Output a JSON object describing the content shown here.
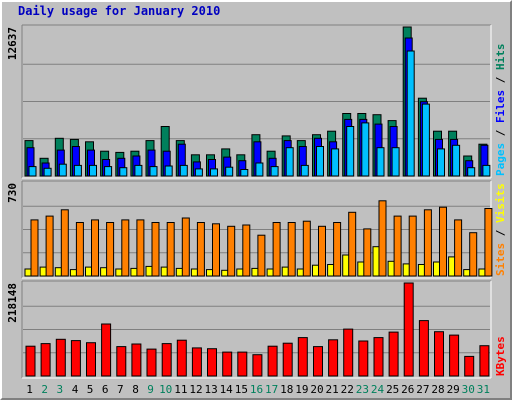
{
  "title": "Daily usage for January 2010",
  "colors": {
    "hits": "#00805C",
    "files": "#0000FF",
    "pages": "#00C0FF",
    "visits": "#FFFF00",
    "sites": "#FF8000",
    "kbytes": "#FF0000",
    "weekend": "#00805C",
    "weekday": "#000000",
    "panel_bg": "#C0C0C0",
    "grid": "#808080"
  },
  "chart_data": [
    {
      "type": "bar",
      "panel": "hits-files-pages",
      "scale_label": "12637",
      "ylim": [
        0,
        12637
      ],
      "legend": {
        "pages": "Pages",
        "files": "Files",
        "hits": "Hits",
        "sep": " / "
      },
      "categories": [
        "1",
        "2",
        "3",
        "4",
        "5",
        "6",
        "7",
        "8",
        "9",
        "10",
        "11",
        "12",
        "13",
        "14",
        "15",
        "16",
        "17",
        "18",
        "19",
        "20",
        "21",
        "22",
        "23",
        "24",
        "25",
        "26",
        "27",
        "28",
        "29",
        "30",
        "31"
      ],
      "series": [
        {
          "name": "Hits",
          "values": [
            3000,
            1500,
            3200,
            3100,
            2900,
            2100,
            2000,
            2100,
            3000,
            4200,
            3000,
            1800,
            1800,
            2300,
            1800,
            3500,
            2100,
            3400,
            3000,
            3500,
            3800,
            5300,
            5300,
            5200,
            4700,
            12637,
            6600,
            3800,
            3800,
            1700,
            2700
          ]
        },
        {
          "name": "Files",
          "values": [
            2400,
            1100,
            2200,
            2500,
            2200,
            1400,
            1500,
            1700,
            2200,
            2100,
            2700,
            1200,
            1400,
            1600,
            1300,
            2900,
            1500,
            3000,
            2500,
            3200,
            2900,
            4800,
            4800,
            4400,
            4200,
            11700,
            6300,
            3100,
            3100,
            1300,
            2600
          ]
        },
        {
          "name": "Pages",
          "values": [
            800,
            650,
            1000,
            900,
            900,
            800,
            700,
            900,
            800,
            850,
            900,
            600,
            600,
            750,
            550,
            1100,
            800,
            2400,
            900,
            2500,
            2300,
            4200,
            4500,
            2400,
            2400,
            10600,
            6100,
            2300,
            2600,
            700,
            900
          ]
        }
      ]
    },
    {
      "type": "bar",
      "panel": "visits-sites",
      "scale_label": "730",
      "ylim": [
        0,
        730
      ],
      "legend": {
        "sites": "Sites",
        "visits": "Visits",
        "sep": " / "
      },
      "categories": [
        "1",
        "2",
        "3",
        "4",
        "5",
        "6",
        "7",
        "8",
        "9",
        "10",
        "11",
        "12",
        "13",
        "14",
        "15",
        "16",
        "17",
        "18",
        "19",
        "20",
        "21",
        "22",
        "23",
        "24",
        "25",
        "26",
        "27",
        "28",
        "29",
        "30",
        "31"
      ],
      "series": [
        {
          "name": "Visits",
          "values": [
            55,
            70,
            65,
            50,
            70,
            65,
            55,
            60,
            75,
            70,
            60,
            55,
            50,
            45,
            55,
            60,
            55,
            70,
            55,
            85,
            90,
            165,
            110,
            230,
            115,
            95,
            90,
            110,
            150,
            50,
            55
          ]
        },
        {
          "name": "Sites",
          "values": [
            440,
            470,
            520,
            420,
            440,
            420,
            440,
            440,
            420,
            420,
            455,
            420,
            410,
            390,
            400,
            320,
            420,
            420,
            430,
            390,
            420,
            500,
            370,
            590,
            470,
            470,
            520,
            540,
            440,
            340,
            530
          ]
        }
      ]
    },
    {
      "type": "bar",
      "panel": "kbytes",
      "scale_label": "218148",
      "ylim": [
        0,
        218148
      ],
      "legend": {
        "kbytes": "KBytes"
      },
      "categories": [
        "1",
        "2",
        "3",
        "4",
        "5",
        "6",
        "7",
        "8",
        "9",
        "10",
        "11",
        "12",
        "13",
        "14",
        "15",
        "16",
        "17",
        "18",
        "19",
        "20",
        "21",
        "22",
        "23",
        "24",
        "25",
        "26",
        "27",
        "28",
        "29",
        "30",
        "31"
      ],
      "series": [
        {
          "name": "KBytes",
          "values": [
            70000,
            76000,
            86000,
            83000,
            78000,
            122000,
            69000,
            75000,
            63000,
            76000,
            84000,
            66000,
            64000,
            56000,
            56000,
            50000,
            70000,
            77000,
            90000,
            69000,
            85000,
            110000,
            82000,
            90000,
            103000,
            218148,
            130000,
            104000,
            96000,
            46000,
            71000
          ]
        }
      ]
    }
  ],
  "x_axis": {
    "labels": [
      "1",
      "2",
      "3",
      "4",
      "5",
      "6",
      "7",
      "8",
      "9",
      "10",
      "11",
      "12",
      "13",
      "14",
      "15",
      "16",
      "17",
      "18",
      "19",
      "20",
      "21",
      "22",
      "23",
      "24",
      "25",
      "26",
      "27",
      "28",
      "29",
      "30",
      "31"
    ],
    "weekend": [
      false,
      true,
      true,
      false,
      false,
      false,
      false,
      false,
      true,
      true,
      false,
      false,
      false,
      false,
      false,
      true,
      true,
      false,
      false,
      false,
      false,
      false,
      true,
      true,
      false,
      false,
      false,
      false,
      false,
      true,
      true
    ]
  }
}
